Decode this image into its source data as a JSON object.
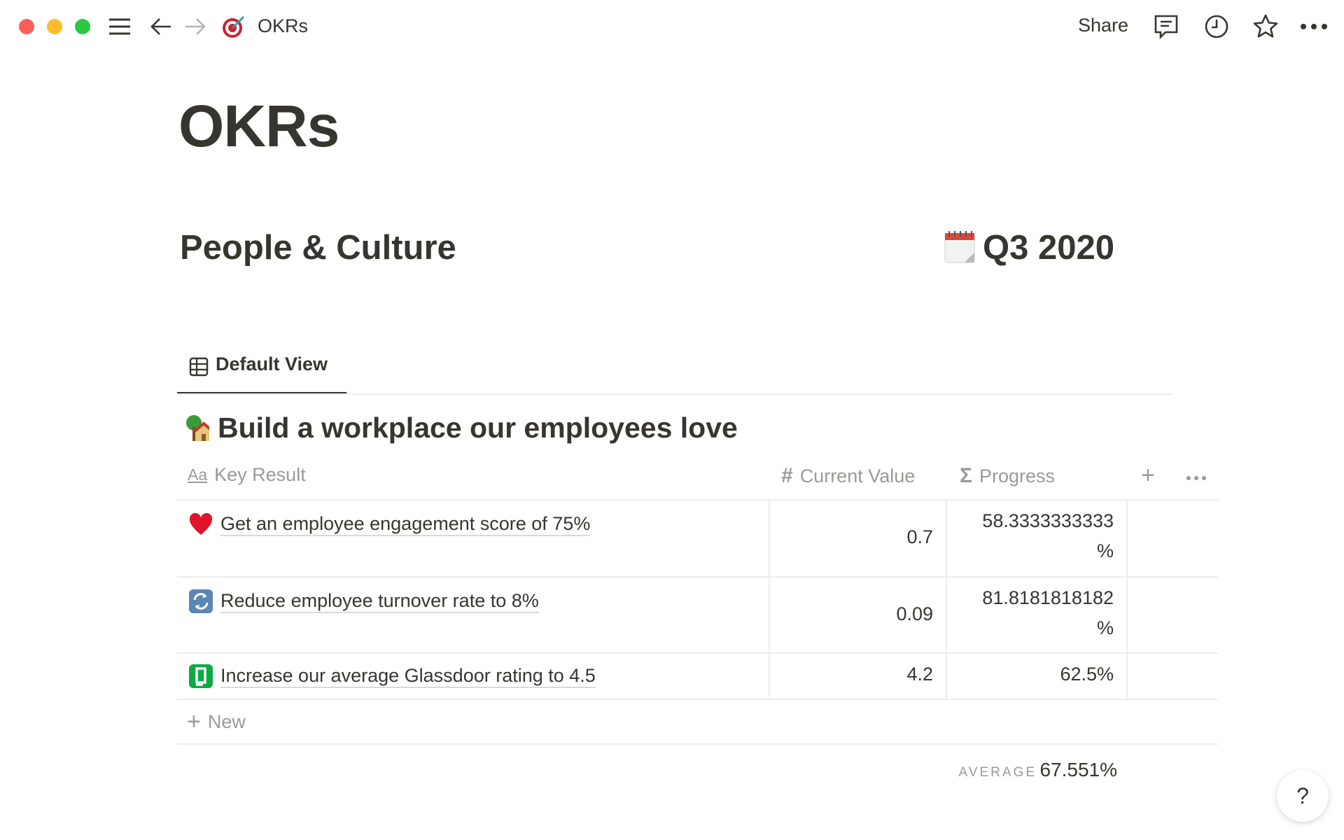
{
  "topbar": {
    "breadcrumb_icon": "dart-target-icon",
    "breadcrumb_title": "OKRs",
    "share_label": "Share",
    "traffic_colors": [
      "#ff5f57",
      "#febc2e",
      "#28c840"
    ]
  },
  "page": {
    "title": "OKRs",
    "team": "People & Culture",
    "quarter": "Q3 2020",
    "quarter_icon": "calendar-icon"
  },
  "view": {
    "tab_label": "Default View",
    "tab_icon": "table-icon"
  },
  "objective": {
    "icon": "house-with-tree-icon",
    "title": "Build a workplace our employees love"
  },
  "table": {
    "columns": [
      {
        "label": "Key Result",
        "icon": "text-aa-icon"
      },
      {
        "label": "Current Value",
        "icon": "hash-icon"
      },
      {
        "label": "Progress",
        "icon": "sigma-icon"
      }
    ],
    "rows": [
      {
        "icon": "heart-icon",
        "key_result": "Get an employee engagement score of 75%",
        "current_value": "0.7",
        "progress": "58.3333333333",
        "progress_unit": "%"
      },
      {
        "icon": "refresh-icon",
        "key_result": "Reduce employee turnover rate to 8%",
        "current_value": "0.09",
        "progress": "81.8181818182",
        "progress_unit": "%"
      },
      {
        "icon": "glassdoor-icon",
        "key_result": "Increase our average Glassdoor rating to 4.5",
        "current_value": "4.2",
        "progress": "62.5%"
      }
    ],
    "new_label": "New",
    "footer": {
      "label": "AVERAGE",
      "value": "67.551%"
    }
  },
  "help_label": "?"
}
